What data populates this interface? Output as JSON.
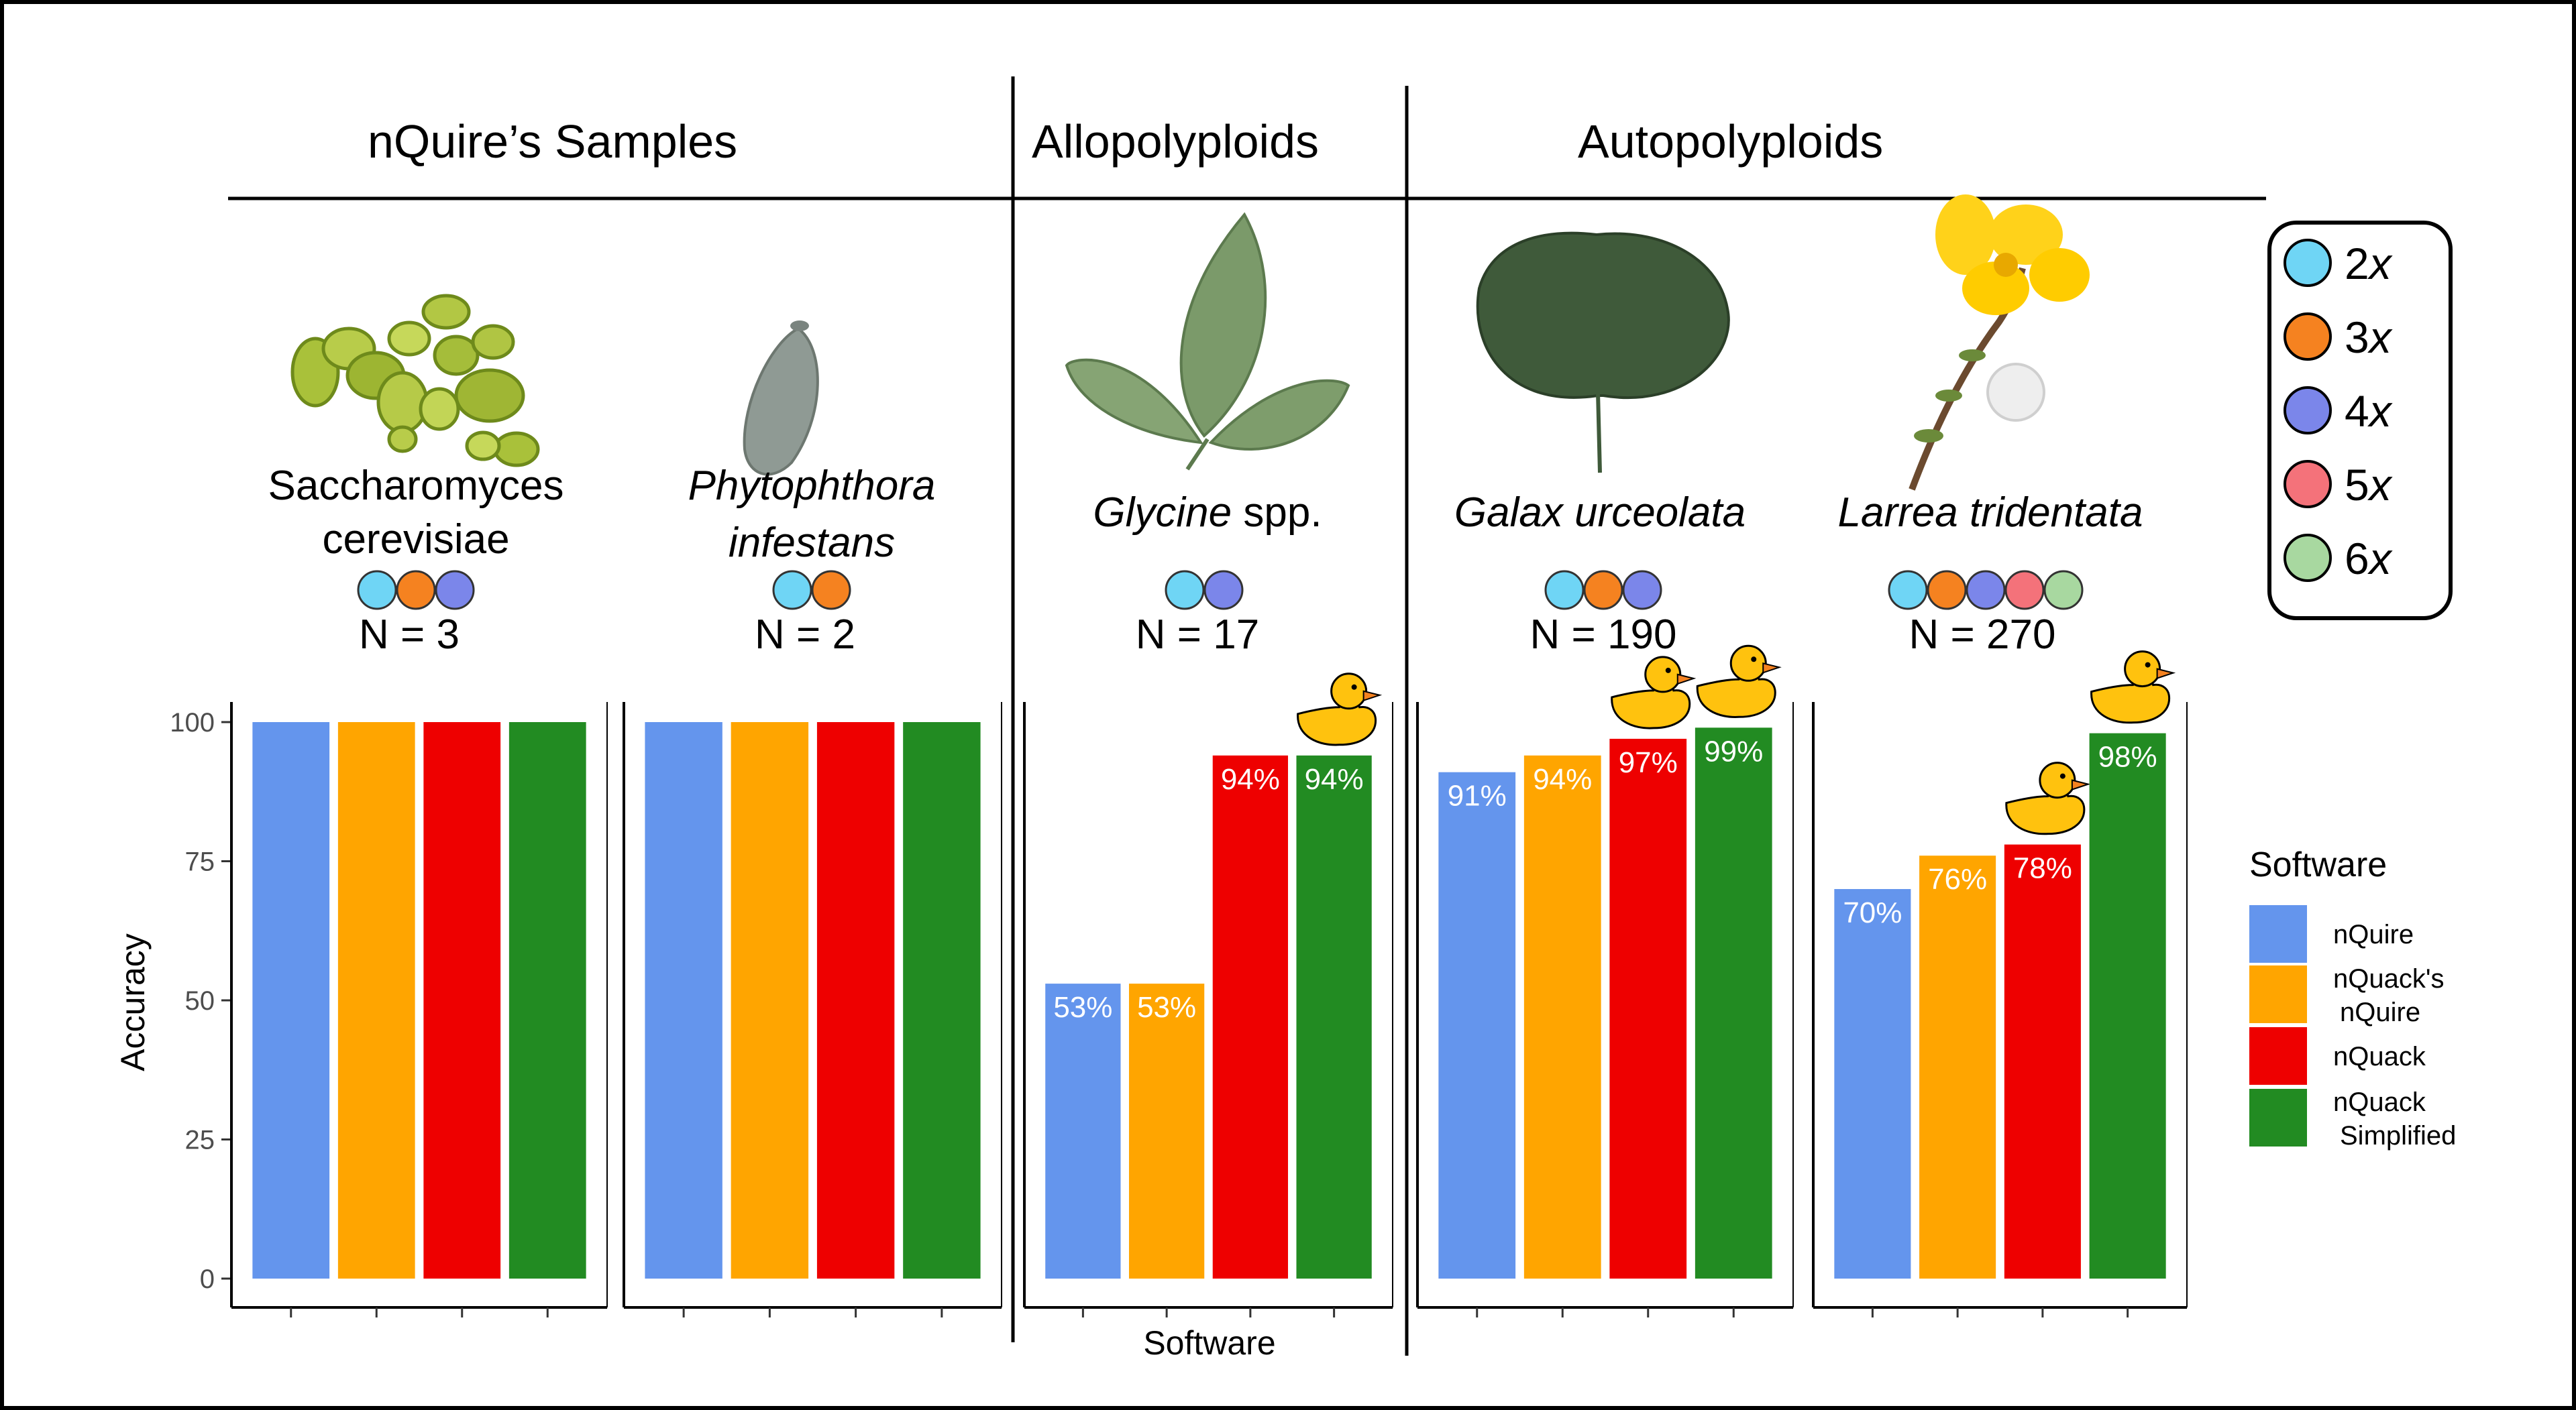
{
  "sections": [
    {
      "title": "nQuire’s Samples"
    },
    {
      "title": "Allopolyploids"
    },
    {
      "title": "Autopolyploids"
    }
  ],
  "species": [
    {
      "name_line1": "Saccharomyces",
      "name_line2": "cerevisiae",
      "italic": false,
      "n_label": "N = 3",
      "ploidies": [
        "2x",
        "3x",
        "4x"
      ]
    },
    {
      "name_line1": "Phytophthora",
      "name_line2": "infestans",
      "italic": true,
      "n_label": "N = 2",
      "ploidies": [
        "2x",
        "3x"
      ]
    },
    {
      "name_italic": "Glycine",
      "name_plain": " spp.",
      "n_label": "N = 17",
      "ploidies": [
        "2x",
        "4x"
      ]
    },
    {
      "name_line1": "Galax urceolata",
      "italic": true,
      "n_label": "N = 190",
      "ploidies": [
        "2x",
        "3x",
        "4x"
      ]
    },
    {
      "name_line1": "Larrea tridentata",
      "italic": true,
      "n_label": "N = 270",
      "ploidies": [
        "2x",
        "3x",
        "4x",
        "5x",
        "6x"
      ]
    }
  ],
  "ploidy_legend": [
    {
      "num": "2",
      "x": "x",
      "color": "#6fd5f5"
    },
    {
      "num": "3",
      "x": "x",
      "color": "#f58220"
    },
    {
      "num": "4",
      "x": "x",
      "color": "#7b86ea"
    },
    {
      "num": "5",
      "x": "x",
      "color": "#f4727a"
    },
    {
      "num": "6",
      "x": "x",
      "color": "#a8d8a0"
    }
  ],
  "chart_data": {
    "type": "bar",
    "ylabel": "Accuracy",
    "xlabel": "Software",
    "ylim": [
      0,
      100
    ],
    "yticks": [
      0,
      25,
      50,
      75,
      100
    ],
    "grid": false,
    "legend_title": "Software",
    "legend_position": "right",
    "series": [
      {
        "name": "nQuire",
        "legend_lines": [
          "nQuire"
        ],
        "color": "#6495ed"
      },
      {
        "name": "nQuack's nQuire",
        "legend_lines": [
          "nQuack's",
          "nQuire"
        ],
        "color": "#ffa500"
      },
      {
        "name": "nQuack",
        "legend_lines": [
          "nQuack"
        ],
        "color": "#ee0000"
      },
      {
        "name": "nQuack Simplified",
        "legend_lines": [
          "nQuack",
          "Simplified"
        ],
        "color": "#228b22"
      }
    ],
    "panels": [
      {
        "species": "Saccharomyces cerevisiae",
        "values": [
          100,
          100,
          100,
          100
        ],
        "labels": [
          "",
          "",
          "",
          ""
        ],
        "best": []
      },
      {
        "species": "Phytophthora infestans",
        "values": [
          100,
          100,
          100,
          100
        ],
        "labels": [
          "",
          "",
          "",
          ""
        ],
        "best": []
      },
      {
        "species": "Glycine spp.",
        "values": [
          53,
          53,
          94,
          94
        ],
        "labels": [
          "53%",
          "53%",
          "94%",
          "94%"
        ],
        "best": [
          3
        ]
      },
      {
        "species": "Galax urceolata",
        "values": [
          91,
          94,
          97,
          99
        ],
        "labels": [
          "91%",
          "94%",
          "97%",
          "99%"
        ],
        "best": [
          2,
          3
        ]
      },
      {
        "species": "Larrea tridentata",
        "values": [
          70,
          76,
          78,
          98
        ],
        "labels": [
          "70%",
          "76%",
          "78%",
          "98%"
        ],
        "best": [
          2,
          3
        ]
      }
    ]
  }
}
